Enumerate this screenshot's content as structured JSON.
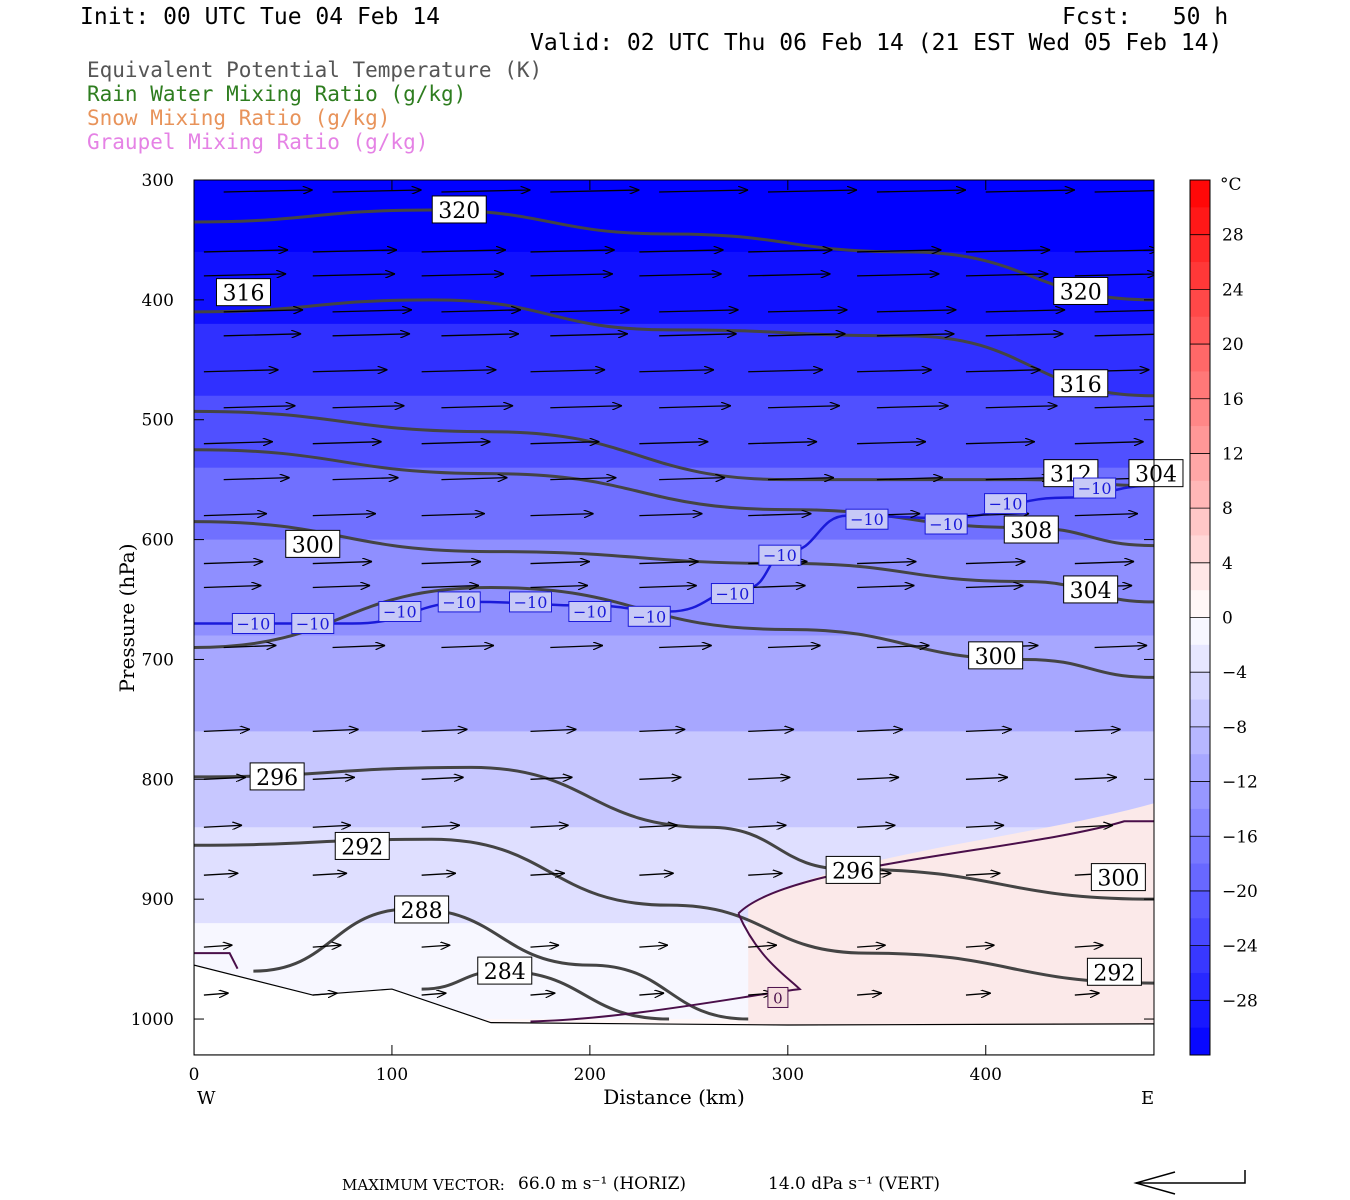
{
  "header": {
    "init": "Init: 00 UTC Tue 04 Feb 14",
    "fcst": "Fcst:   50 h",
    "valid": "Valid: 02 UTC Thu 06 Feb 14 (21 EST Wed 05 Feb 14)"
  },
  "legend": [
    {
      "label": "Equivalent Potential Temperature (K)",
      "color": "#555555"
    },
    {
      "label": "Rain Water Mixing Ratio (g/kg)",
      "color": "#2e7d1f"
    },
    {
      "label": "Snow Mixing Ratio (g/kg)",
      "color": "#e8935a"
    },
    {
      "label": "Graupel Mixing Ratio (g/kg)",
      "color": "#e582e5"
    }
  ],
  "footer": {
    "max_vector_label": "MAXIMUM VECTOR:",
    "horiz": "66.0 m s⁻¹ (HORIZ)",
    "vert": "14.0 dPa s⁻¹ (VERT)"
  },
  "chart_data": {
    "type": "heatmap",
    "description_fields": "cross-section of temperature (shaded), theta-e contours, vectors",
    "xlabel": "Distance (km)",
    "ylabel": "Pressure (hPa)",
    "xlim": [
      0,
      485
    ],
    "ylim": [
      1030,
      300
    ],
    "x_ticks": [
      0,
      100,
      200,
      300,
      400
    ],
    "y_ticks": [
      300,
      400,
      500,
      600,
      700,
      800,
      900,
      1000
    ],
    "x_left_label": "W",
    "x_right_label": "E",
    "colorbar": {
      "unit": "°C",
      "tick_labels": [
        "28",
        "24",
        "20",
        "16",
        "12",
        "8",
        "4",
        "0",
        "−4",
        "−8",
        "−12",
        "−16",
        "−20",
        "−24",
        "−28"
      ],
      "tick_values": [
        28,
        24,
        20,
        16,
        12,
        8,
        4,
        0,
        -4,
        -8,
        -12,
        -16,
        -20,
        -24,
        -28
      ],
      "range": [
        -32,
        32
      ],
      "cold_color": "#0000ff",
      "warm_color": "#ff0000"
    },
    "temperature_bands": [
      {
        "p": 300,
        "t": -32
      },
      {
        "p": 360,
        "t": -30
      },
      {
        "p": 420,
        "t": -26
      },
      {
        "p": 480,
        "t": -22
      },
      {
        "p": 540,
        "t": -18
      },
      {
        "p": 600,
        "t": -14
      },
      {
        "p": 680,
        "t": -11
      },
      {
        "p": 760,
        "t": -7
      },
      {
        "p": 840,
        "t": -4
      },
      {
        "p": 920,
        "t": -1
      },
      {
        "p": 1000,
        "t": 1
      }
    ],
    "warm_region": {
      "x": [
        280,
        485
      ],
      "p_top": [
        905,
        820
      ],
      "t": 2
    },
    "theta_e_contours": [
      {
        "label": "320",
        "points": [
          [
            0,
            335
          ],
          [
            120,
            325
          ],
          [
            240,
            345
          ],
          [
            360,
            360
          ],
          [
            485,
            400
          ]
        ],
        "label_at": [
          134,
          325
        ]
      },
      {
        "label": "320",
        "points": [],
        "label_at": [
          448,
          393
        ]
      },
      {
        "label": "316",
        "points": [
          [
            0,
            410
          ],
          [
            120,
            400
          ],
          [
            240,
            425
          ],
          [
            360,
            430
          ],
          [
            485,
            480
          ]
        ],
        "label_at": [
          25,
          394
        ]
      },
      {
        "label": "316",
        "points": [],
        "label_at": [
          448,
          470
        ]
      },
      {
        "label": "312",
        "points": [
          [
            0,
            493
          ],
          [
            150,
            510
          ],
          [
            300,
            550
          ],
          [
            420,
            550
          ],
          [
            485,
            555
          ]
        ],
        "label_at": [
          443,
          545
        ]
      },
      {
        "label": "308",
        "points": [
          [
            0,
            525
          ],
          [
            150,
            545
          ],
          [
            300,
            575
          ],
          [
            420,
            590
          ],
          [
            485,
            605
          ]
        ],
        "label_at": [
          423,
          592
        ]
      },
      {
        "label": "304",
        "points": [
          [
            0,
            585
          ],
          [
            150,
            610
          ],
          [
            300,
            620
          ],
          [
            420,
            635
          ],
          [
            485,
            652
          ]
        ],
        "label_at": [
          486,
          545
        ]
      },
      {
        "label": "304",
        "points": [],
        "label_at": [
          453,
          642
        ]
      },
      {
        "label": "300",
        "points": [
          [
            0,
            690
          ],
          [
            150,
            640
          ],
          [
            300,
            675
          ],
          [
            420,
            700
          ],
          [
            485,
            715
          ]
        ],
        "label_at": [
          60,
          604
        ]
      },
      {
        "label": "300",
        "points": [],
        "label_at": [
          405,
          697
        ]
      },
      {
        "label": "296",
        "points": [
          [
            0,
            798
          ],
          [
            140,
            790
          ],
          [
            260,
            840
          ],
          [
            330,
            875
          ],
          [
            485,
            900
          ]
        ],
        "label_at": [
          42,
          798
        ]
      },
      {
        "label": "296",
        "points": [],
        "label_at": [
          333,
          876
        ]
      },
      {
        "label": "292",
        "points": [
          [
            0,
            855
          ],
          [
            120,
            850
          ],
          [
            240,
            905
          ],
          [
            340,
            945
          ],
          [
            485,
            970
          ]
        ],
        "label_at": [
          85,
          856
        ]
      },
      {
        "label": "292",
        "points": [],
        "label_at": [
          465,
          961
        ]
      },
      {
        "label": "300",
        "points": [],
        "label_at": [
          467,
          882
        ]
      },
      {
        "label": "288",
        "points": [
          [
            30,
            960
          ],
          [
            110,
            908
          ],
          [
            200,
            955
          ],
          [
            280,
            1000
          ]
        ],
        "label_at": [
          115,
          909
        ]
      },
      {
        "label": "284",
        "points": [
          [
            115,
            975
          ],
          [
            155,
            960
          ],
          [
            240,
            1000
          ]
        ],
        "label_at": [
          157,
          960
        ]
      }
    ],
    "isotherm_minus10": {
      "label": "−10",
      "points": [
        [
          0,
          670
        ],
        [
          80,
          670
        ],
        [
          140,
          652
        ],
        [
          200,
          655
        ],
        [
          240,
          660
        ],
        [
          280,
          640
        ],
        [
          300,
          610
        ],
        [
          330,
          580
        ],
        [
          380,
          582
        ],
        [
          440,
          565
        ],
        [
          485,
          555
        ]
      ],
      "label_positions": [
        [
          30,
          670
        ],
        [
          60,
          670
        ],
        [
          104,
          660
        ],
        [
          134,
          652
        ],
        [
          170,
          652
        ],
        [
          200,
          660
        ],
        [
          230,
          664
        ],
        [
          272,
          645
        ],
        [
          296,
          613
        ],
        [
          340,
          583
        ],
        [
          380,
          587
        ],
        [
          410,
          570
        ],
        [
          455,
          557
        ]
      ]
    },
    "isotherm_zero": {
      "label": "0",
      "label_at": [
        295,
        982
      ]
    },
    "vectors_rows_p": [
      310,
      360,
      380,
      410,
      430,
      460,
      490,
      520,
      550,
      580,
      620,
      640,
      690,
      760,
      800,
      840,
      880,
      940,
      980
    ],
    "vector_summary": "westerly flow, strongest aloft"
  }
}
